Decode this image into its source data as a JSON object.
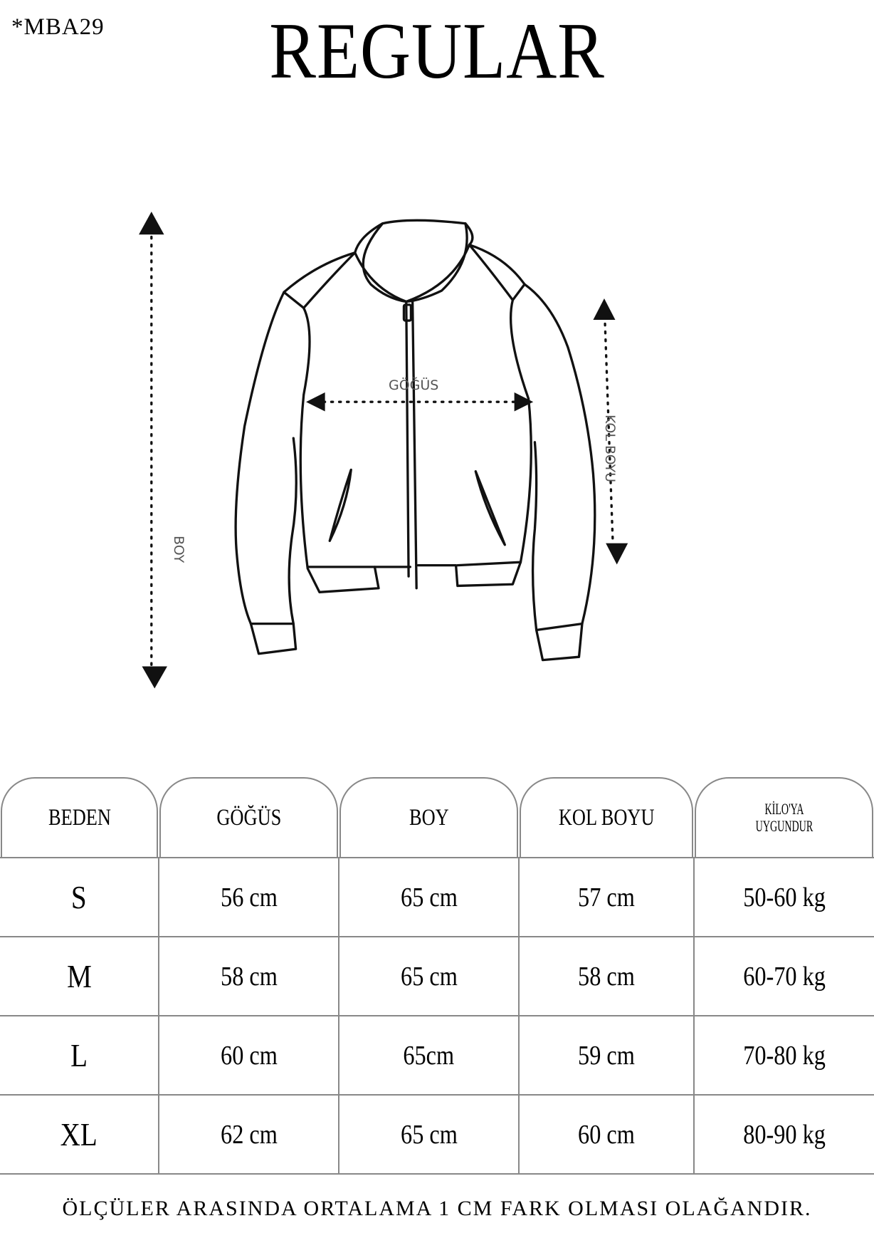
{
  "product_code": "*MBA29",
  "fit_title": "REGULAR",
  "diagram": {
    "chest_label": "GÖĞÜS",
    "sleeve_label": "KOL BOYU",
    "length_label": "BOY"
  },
  "table": {
    "headers": [
      "BEDEN",
      "GÖĞÜS",
      "BOY",
      "KOL BOYU",
      "KİLO'YA UYGUNDUR"
    ],
    "weight_header_lines": [
      "KİLO'YA",
      "UYGUNDUR"
    ],
    "rows": [
      [
        "S",
        "56 cm",
        "65 cm",
        "57  cm",
        "50-60 kg"
      ],
      [
        "M",
        "58 cm",
        "65 cm",
        "58 cm",
        "60-70 kg"
      ],
      [
        "L",
        "60 cm",
        "65cm",
        "59 cm",
        "70-80 kg"
      ],
      [
        "XL",
        "62 cm",
        "65 cm",
        "60 cm",
        "80-90 kg"
      ]
    ]
  },
  "note": "ÖLÇÜLER ARASINDA ORTALAMA 1 CM FARK OLMASI OLAĞANDIR."
}
